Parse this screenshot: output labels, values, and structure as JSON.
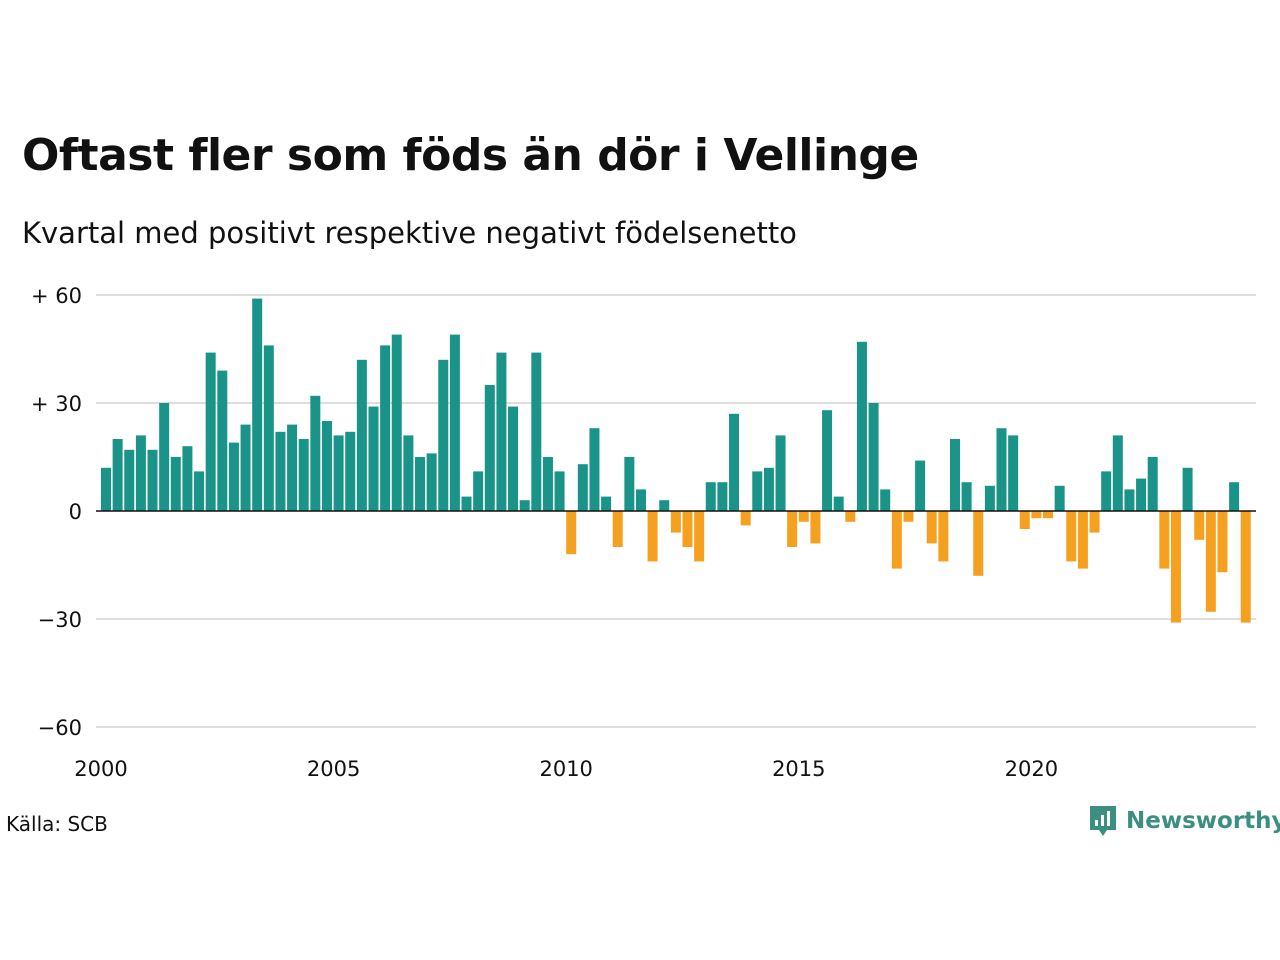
{
  "title": "Oftast fler som föds än dör i Vellinge",
  "subtitle": "Kvartal med positivt respektive negativt födelsenetto",
  "source": "Källa: SCB",
  "brand": "Newsworthy",
  "colors": {
    "positive": "#1a9488",
    "negative": "#f5a11f",
    "grid": "#dddddd",
    "axis": "#111111",
    "brand": "#3a8f81"
  },
  "chart_data": {
    "type": "bar",
    "x_start": "2000 Q1",
    "y_ticks": [
      {
        "value": 60,
        "label": "+ 60"
      },
      {
        "value": 30,
        "label": "+ 30"
      },
      {
        "value": 0,
        "label": "0"
      },
      {
        "value": -30,
        "label": "−30"
      },
      {
        "value": -60,
        "label": "−60"
      }
    ],
    "x_ticks": [
      "2000",
      "2005",
      "2010",
      "2015",
      "2020"
    ],
    "ylim": [
      -60,
      60
    ],
    "grid": true,
    "values": [
      12,
      20,
      17,
      21,
      17,
      30,
      15,
      18,
      11,
      44,
      39,
      19,
      24,
      59,
      46,
      22,
      24,
      20,
      32,
      25,
      21,
      22,
      42,
      29,
      46,
      49,
      21,
      15,
      16,
      42,
      49,
      4,
      11,
      35,
      44,
      29,
      3,
      44,
      15,
      11,
      -12,
      13,
      23,
      4,
      -10,
      15,
      6,
      -14,
      3,
      -6,
      -10,
      -14,
      8,
      8,
      27,
      -4,
      11,
      12,
      21,
      -10,
      -3,
      -9,
      28,
      4,
      -3,
      47,
      30,
      6,
      -16,
      -3,
      14,
      -9,
      -14,
      20,
      8,
      -18,
      7,
      23,
      21,
      -5,
      -2,
      -2,
      7,
      -14,
      -16,
      -6,
      11,
      21,
      6,
      9,
      15,
      -16,
      -31,
      12,
      -8,
      -28,
      -17,
      8,
      -31
    ]
  }
}
